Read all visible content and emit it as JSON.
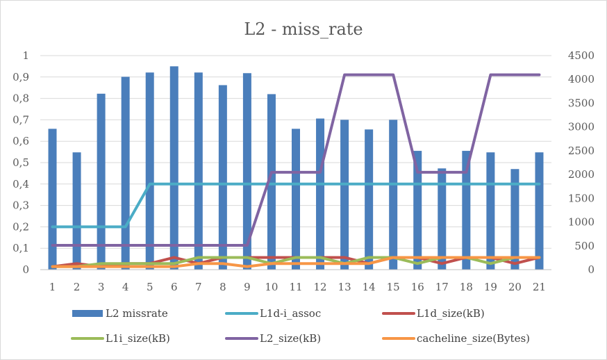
{
  "chart_data": {
    "type": "bar",
    "title": "L2 - miss_rate",
    "categories": [
      "1",
      "2",
      "3",
      "4",
      "5",
      "6",
      "7",
      "8",
      "9",
      "10",
      "11",
      "12",
      "13",
      "14",
      "15",
      "16",
      "17",
      "18",
      "19",
      "20",
      "21"
    ],
    "y_left": {
      "lim": [
        0,
        1
      ],
      "ticks": [
        "0",
        "0,1",
        "0,2",
        "0,3",
        "0,4",
        "0,5",
        "0,6",
        "0,7",
        "0,8",
        "0,9",
        "1"
      ]
    },
    "y_right": {
      "lim": [
        0,
        4500
      ],
      "ticks": [
        "0",
        "500",
        "1000",
        "1500",
        "2000",
        "2500",
        "3000",
        "3500",
        "4000",
        "4500"
      ]
    },
    "grid": true,
    "legend_position": "bottom",
    "series": [
      {
        "name": "L2 missrate",
        "kind": "bar",
        "axis": "left",
        "color": "#4a7ebb",
        "values": [
          0.658,
          0.548,
          0.822,
          0.901,
          0.921,
          0.95,
          0.921,
          0.862,
          0.918,
          0.82,
          0.658,
          0.706,
          0.7,
          0.655,
          0.7,
          0.555,
          0.473,
          0.555,
          0.548,
          0.47,
          0.548
        ]
      },
      {
        "name": "L1d-i_assoc",
        "kind": "line",
        "axis": "right",
        "color": "#4bacc6",
        "values": [
          900,
          900,
          900,
          900,
          1800,
          1800,
          1800,
          1800,
          1800,
          1800,
          1800,
          1800,
          1800,
          1800,
          1800,
          1800,
          1800,
          1800,
          1800,
          1800,
          1800
        ]
      },
      {
        "name": "L1d_size(kB)",
        "kind": "line",
        "axis": "right",
        "color": "#c0504d",
        "values": [
          64,
          128,
          64,
          128,
          128,
          256,
          128,
          256,
          256,
          256,
          256,
          256,
          256,
          128,
          256,
          256,
          128,
          256,
          256,
          128,
          256
        ]
      },
      {
        "name": "L1i_size(kB)",
        "kind": "line",
        "axis": "right",
        "color": "#9bbb59",
        "values": [
          64,
          64,
          128,
          128,
          128,
          128,
          256,
          256,
          256,
          128,
          256,
          256,
          128,
          256,
          256,
          128,
          256,
          256,
          128,
          256,
          256
        ]
      },
      {
        "name": "L2_size(kB)",
        "kind": "line",
        "axis": "right",
        "color": "#8064a2",
        "values": [
          512,
          512,
          512,
          512,
          512,
          512,
          512,
          512,
          512,
          2048,
          2048,
          2048,
          4096,
          4096,
          4096,
          2048,
          2048,
          2048,
          4096,
          4096,
          4096
        ]
      },
      {
        "name": "cacheline_size(Bytes)",
        "kind": "line",
        "axis": "right",
        "color": "#f79646",
        "values": [
          64,
          64,
          64,
          64,
          64,
          64,
          128,
          128,
          64,
          128,
          128,
          128,
          128,
          128,
          256,
          256,
          256,
          256,
          256,
          256,
          256
        ]
      }
    ]
  }
}
